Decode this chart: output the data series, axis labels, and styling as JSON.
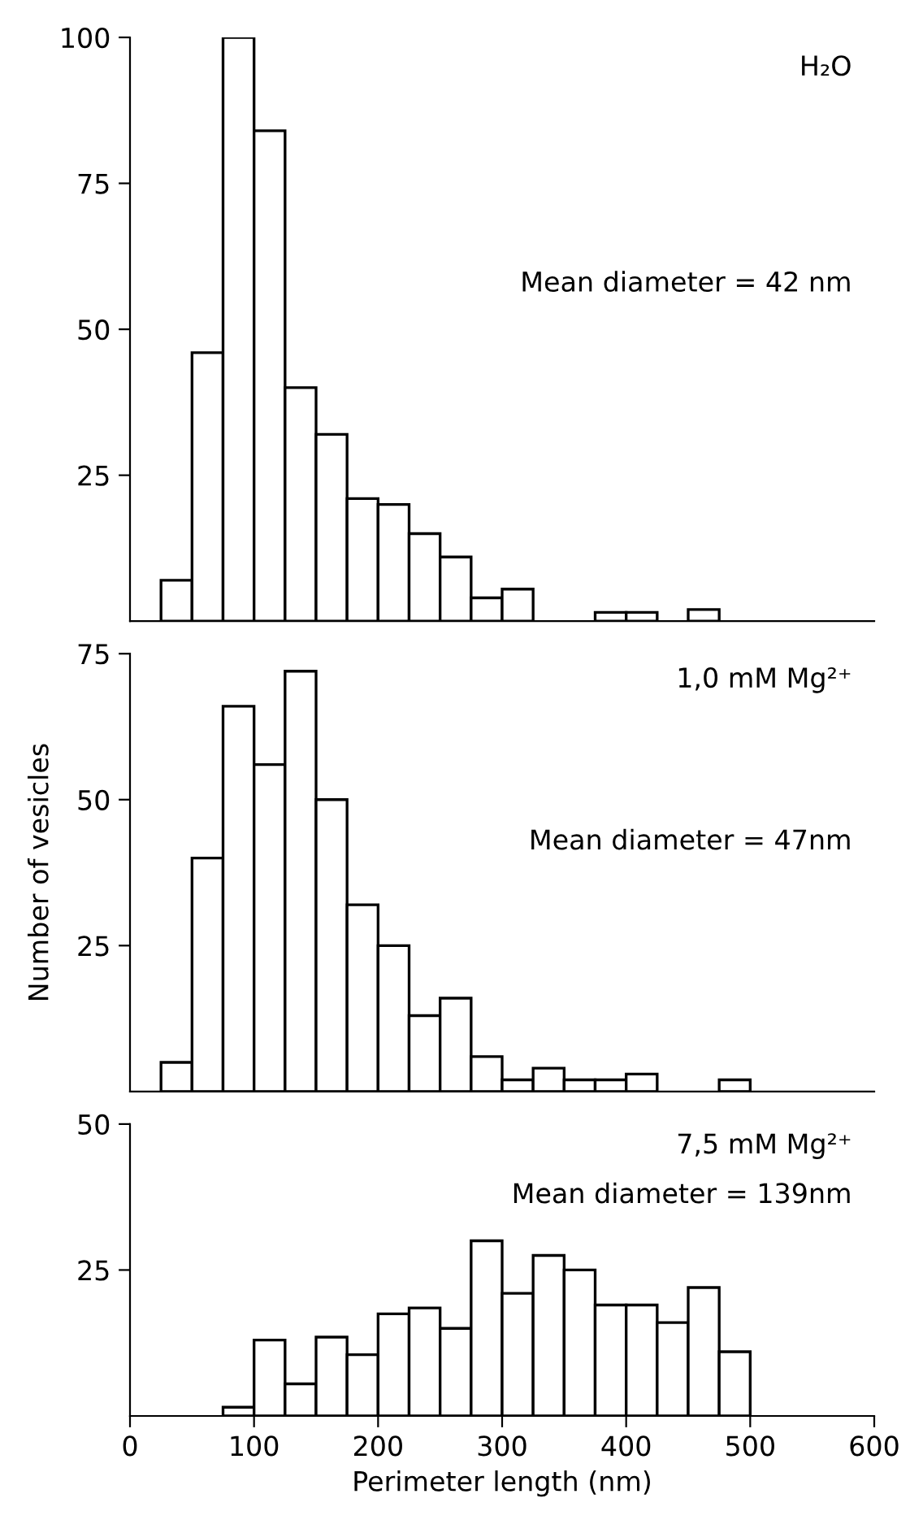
{
  "chart_data": [
    {
      "type": "histogram",
      "bins": [
        0,
        25,
        50,
        75,
        100,
        125,
        150,
        175,
        200,
        225,
        250,
        275,
        300,
        325,
        350,
        375,
        400,
        425,
        450,
        475,
        500,
        525,
        550,
        575,
        600
      ],
      "values": [
        0,
        7,
        46,
        100,
        84,
        40,
        32,
        21,
        20,
        15,
        11,
        4,
        5.5,
        0,
        0,
        1.5,
        1.5,
        0,
        2,
        0,
        0,
        0,
        0,
        0
      ],
      "color": "#ffffff",
      "xlim": [
        0,
        600
      ],
      "ylim": [
        0,
        100
      ],
      "yticks": [
        25,
        50,
        75,
        100
      ],
      "tick_labels": "y",
      "annotations": [
        "H₂O",
        "Mean diameter = 42 nm"
      ]
    },
    {
      "type": "histogram",
      "bins": [
        0,
        25,
        50,
        75,
        100,
        125,
        150,
        175,
        200,
        225,
        250,
        275,
        300,
        325,
        350,
        375,
        400,
        425,
        450,
        475,
        500,
        525,
        550,
        575,
        600
      ],
      "values": [
        0,
        5,
        40,
        66,
        56,
        72,
        50,
        32,
        25,
        13,
        16,
        6,
        2,
        4,
        2,
        2,
        3,
        0,
        0,
        2,
        0,
        0,
        0,
        0
      ],
      "color": "#ffffff",
      "xlim": [
        0,
        600
      ],
      "ylim": [
        0,
        75
      ],
      "yticks": [
        25,
        50,
        75
      ],
      "tick_labels": "y",
      "ylabel": "Number of vesicles",
      "annotations": [
        "1,0 mM Mg²⁺",
        "Mean diameter = 47nm"
      ]
    },
    {
      "type": "histogram",
      "bins": [
        0,
        25,
        50,
        75,
        100,
        125,
        150,
        175,
        200,
        225,
        250,
        275,
        300,
        325,
        350,
        375,
        400,
        425,
        450,
        475,
        500,
        525,
        550,
        575,
        600
      ],
      "values": [
        0,
        0,
        0,
        1.5,
        13,
        5.5,
        13.5,
        10.5,
        17.5,
        18.5,
        15,
        30,
        21,
        27.5,
        25,
        19,
        19,
        16,
        22,
        11,
        0,
        0,
        0,
        0
      ],
      "color": "#ffffff",
      "xlim": [
        0,
        600
      ],
      "ylim": [
        0,
        50
      ],
      "yticks": [
        25,
        50
      ],
      "xticks": [
        0,
        100,
        200,
        300,
        400,
        500,
        600
      ],
      "xlabel": "Perimeter length (nm)",
      "annotations": [
        "7,5 mM Mg²⁺",
        "Mean diameter = 139nm"
      ]
    }
  ]
}
